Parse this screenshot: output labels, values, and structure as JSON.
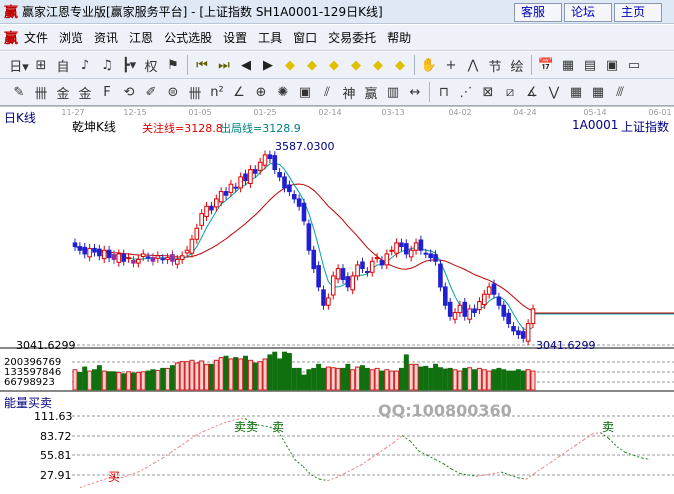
{
  "window": {
    "logo": "赢",
    "title": "赢家江恩专业版[赢家服务平台] - [上证指数  SH1A0001-129日K线]",
    "buttons": [
      "客服",
      "论坛",
      "主页"
    ]
  },
  "menu": {
    "logo": "赢",
    "items": [
      "文件",
      "浏览",
      "资讯",
      "江恩",
      "公式选股",
      "设置",
      "工具",
      "窗口",
      "交易委托",
      "帮助"
    ]
  },
  "toolbar1": [
    {
      "icon": "day-period-dropdown",
      "glyph": "日▾"
    },
    {
      "icon": "window-icon",
      "glyph": "⊞"
    },
    {
      "icon": "self-icon",
      "glyph": "自"
    },
    {
      "icon": "indicator3-icon",
      "glyph": "♪"
    },
    {
      "icon": "indicator9-icon",
      "glyph": "♫"
    },
    {
      "icon": "kline-dropdown",
      "glyph": "┣▾"
    },
    {
      "icon": "weight-icon",
      "glyph": "权"
    },
    {
      "icon": "flag-icon",
      "glyph": "⚑"
    },
    {
      "icon": "first-icon",
      "glyph": "⏮"
    },
    {
      "icon": "last-icon",
      "glyph": "⏭"
    },
    {
      "icon": "prev-icon",
      "glyph": "◀"
    },
    {
      "icon": "next-icon",
      "glyph": "▶"
    },
    {
      "icon": "left-diamond-icon",
      "glyph": "◆"
    },
    {
      "icon": "right-diamond-icon",
      "glyph": "◆"
    },
    {
      "icon": "zoom-in-diamond-icon",
      "glyph": "◆"
    },
    {
      "icon": "zoom-out-diamond-icon",
      "glyph": "◆"
    },
    {
      "icon": "expand-diamond-icon",
      "glyph": "◆"
    },
    {
      "icon": "updown-diamond-icon",
      "glyph": "◆"
    },
    {
      "icon": "hand-icon",
      "glyph": "✋"
    },
    {
      "icon": "crosshair-icon",
      "glyph": "+"
    },
    {
      "icon": "line-icon",
      "glyph": "⋀"
    },
    {
      "icon": "festival-icon",
      "glyph": "节"
    },
    {
      "icon": "draw-icon",
      "glyph": "绘"
    },
    {
      "icon": "calendar-icon",
      "glyph": "📅"
    },
    {
      "icon": "calculator-icon",
      "glyph": "▦"
    },
    {
      "icon": "notes-icon",
      "glyph": "▤"
    },
    {
      "icon": "save-icon",
      "glyph": "▣"
    },
    {
      "icon": "print-icon",
      "glyph": "▭"
    }
  ],
  "toolbar2": [
    {
      "icon": "pen-icon",
      "glyph": "✎"
    },
    {
      "icon": "grid-icon",
      "glyph": "卌"
    },
    {
      "icon": "gold-icon",
      "glyph": "金"
    },
    {
      "icon": "gold2-icon",
      "glyph": "金"
    },
    {
      "icon": "f-grid-icon",
      "glyph": "F"
    },
    {
      "icon": "spiral-icon",
      "glyph": "⟲"
    },
    {
      "icon": "pen-ruler-icon",
      "glyph": "✐"
    },
    {
      "icon": "circle-grid-icon",
      "glyph": "⊜"
    },
    {
      "icon": "grid2-icon",
      "glyph": "卌"
    },
    {
      "icon": "n2-icon",
      "glyph": "n²"
    },
    {
      "icon": "angle-icon",
      "glyph": "∠"
    },
    {
      "icon": "target-icon",
      "glyph": "⊕"
    },
    {
      "icon": "star-icon",
      "glyph": "✺"
    },
    {
      "icon": "square-icon",
      "glyph": "▣"
    },
    {
      "icon": "fan-icon",
      "glyph": "⫽"
    },
    {
      "icon": "shen-icon",
      "glyph": "神"
    },
    {
      "icon": "ying-icon",
      "glyph": "赢"
    },
    {
      "icon": "calendar-grid-icon",
      "glyph": "▥"
    },
    {
      "icon": "width-icon",
      "glyph": "↔"
    },
    {
      "icon": "box-icon",
      "glyph": "⊓"
    },
    {
      "icon": "fan-lines-icon",
      "glyph": "⋰"
    },
    {
      "icon": "box-diag-icon",
      "glyph": "⊠"
    },
    {
      "icon": "box-diag2-icon",
      "glyph": "⧄"
    },
    {
      "icon": "angle2-icon",
      "glyph": "∡"
    },
    {
      "icon": "wave-icon",
      "glyph": "⋁"
    },
    {
      "icon": "grid3-icon",
      "glyph": "▦"
    },
    {
      "icon": "grid4-icon",
      "glyph": "▦"
    },
    {
      "icon": "parallel-icon",
      "glyph": "⫻"
    }
  ],
  "chart_panel": {
    "period_label": "日K线",
    "kline_label": "乾坤K线",
    "focus_line": "关注线=3128.8",
    "exit_line": "出局线=3128.9",
    "code": "1A0001",
    "name": "上证指数",
    "high_label": "3587.0300",
    "low_label": "3041.6299",
    "low_axis": "3041.6299",
    "dates": [
      "11-27",
      "12-15",
      "01-05",
      "01-25",
      "02-14",
      "03-13",
      "04-02",
      "04-24",
      "05-14",
      "06-01"
    ]
  },
  "volume_panel": {
    "ticks": [
      "200396769",
      "133597846",
      "66798923"
    ]
  },
  "energy_panel": {
    "title": "能量买卖",
    "ticks": [
      "111.63",
      "83.72",
      "55.81",
      "27.91"
    ],
    "buy": "买",
    "sell": "卖",
    "sell2": "卖卖"
  },
  "watermark": "QQ:100800360",
  "colors": {
    "up": "#e00000",
    "down": "#006400",
    "ma_short": "#00a0a0",
    "ma_long": "#c00000",
    "axis": "#000080"
  },
  "chart_data": {
    "type": "candlestick",
    "closes": [
      3310,
      3300,
      3290,
      3305,
      3295,
      3285,
      3300,
      3280,
      3275,
      3290,
      3270,
      3280,
      3265,
      3275,
      3290,
      3280,
      3270,
      3285,
      3275,
      3280,
      3270,
      3275,
      3285,
      3300,
      3330,
      3360,
      3400,
      3420,
      3410,
      3440,
      3460,
      3450,
      3480,
      3470,
      3500,
      3490,
      3520,
      3510,
      3540,
      3560,
      3550,
      3520,
      3500,
      3470,
      3460,
      3440,
      3420,
      3380,
      3300,
      3250,
      3200,
      3150,
      3170,
      3230,
      3250,
      3220,
      3200,
      3230,
      3260,
      3250,
      3240,
      3270,
      3280,
      3260,
      3290,
      3300,
      3320,
      3310,
      3290,
      3300,
      3320,
      3300,
      3290,
      3280,
      3270,
      3200,
      3150,
      3120,
      3130,
      3150,
      3120,
      3140,
      3130,
      3160,
      3180,
      3200,
      3180,
      3150,
      3120,
      3100,
      3080,
      3070,
      3060,
      3100,
      3140
    ],
    "volumes": [
      150,
      130,
      170,
      140,
      150,
      180,
      140,
      135,
      135,
      130,
      120,
      135,
      125,
      130,
      135,
      140,
      150,
      145,
      160,
      160,
      180,
      200,
      210,
      210,
      220,
      200,
      215,
      190,
      190,
      220,
      240,
      250,
      230,
      240,
      230,
      250,
      220,
      200,
      210,
      230,
      260,
      280,
      230,
      280,
      270,
      160,
      160,
      110,
      150,
      160,
      190,
      160,
      170,
      165,
      160,
      160,
      190,
      150,
      170,
      180,
      160,
      150,
      160,
      140,
      150,
      140,
      140,
      160,
      260,
      190,
      190,
      170,
      175,
      160,
      190,
      165,
      155,
      160,
      150,
      140,
      160,
      165,
      150,
      160,
      150,
      140,
      150,
      160,
      150,
      140,
      140,
      150,
      140,
      150,
      140
    ],
    "energy": [
      10,
      14,
      18,
      22,
      26,
      24,
      28,
      32,
      38,
      45,
      52,
      60,
      68,
      76,
      84,
      90,
      95,
      100,
      104,
      107,
      108,
      100,
      98,
      96,
      90,
      70,
      50,
      40,
      28,
      22,
      20,
      24,
      30,
      36,
      42,
      50,
      58,
      66,
      74,
      84,
      76,
      62,
      56,
      50,
      44,
      36,
      30,
      28,
      26,
      28,
      30,
      32,
      28,
      24,
      22,
      30,
      38,
      46,
      54,
      62,
      70,
      78,
      86,
      88,
      80,
      68,
      60,
      56,
      52,
      50
    ],
    "ylim": [
      3041.6299,
      3587.03
    ]
  }
}
